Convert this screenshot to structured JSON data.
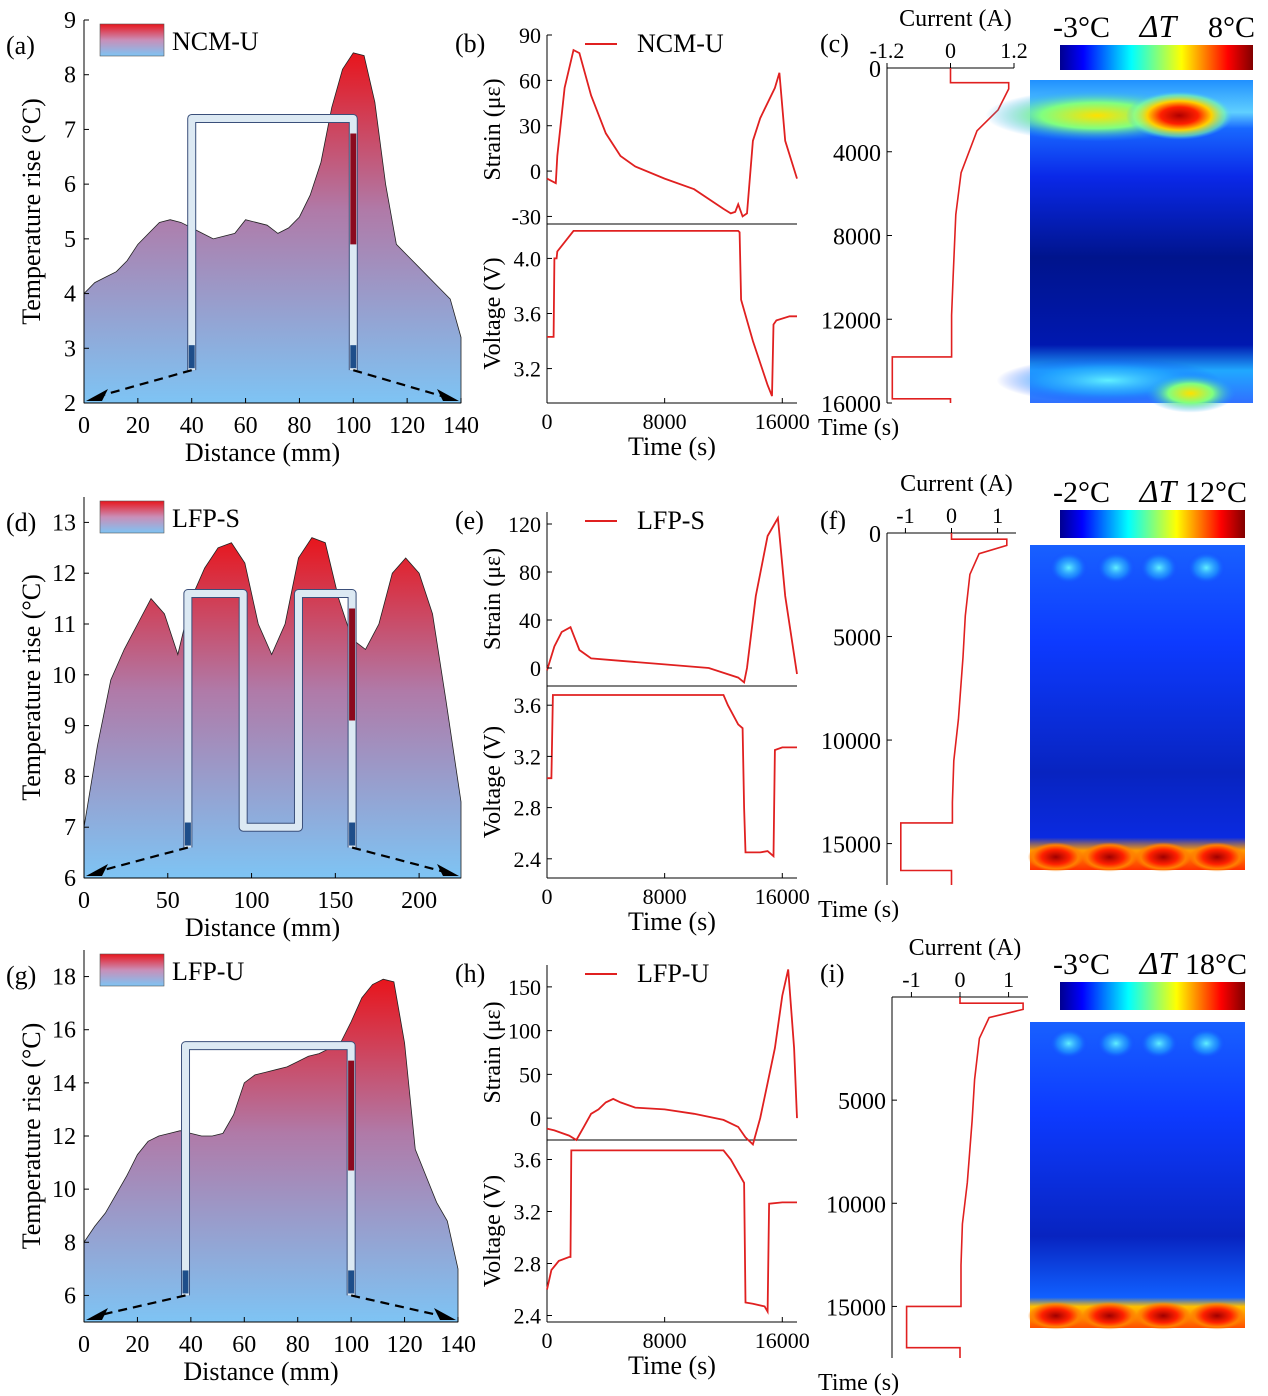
{
  "colors": {
    "red": "#e0191e",
    "blue": "#7ec0f0",
    "line": "#e02020"
  },
  "chart_data": [
    {
      "panel": "a",
      "type": "area",
      "label": "(a)",
      "legend": "NCM-U",
      "xlabel": "Distance (mm)",
      "ylabel": "Temperature rise (°C)",
      "xlim": [
        0,
        140
      ],
      "ylim": [
        2,
        9
      ],
      "xticks": [
        0,
        20,
        40,
        60,
        80,
        100,
        120,
        140
      ],
      "yticks": [
        2,
        3,
        4,
        5,
        6,
        7,
        8,
        9
      ],
      "x": [
        0,
        4,
        8,
        12,
        16,
        20,
        24,
        28,
        32,
        36,
        40,
        44,
        48,
        52,
        56,
        60,
        64,
        68,
        72,
        76,
        80,
        84,
        88,
        92,
        96,
        100,
        104,
        108,
        112,
        116,
        120,
        124,
        128,
        132,
        136,
        140
      ],
      "y": [
        4.0,
        4.2,
        4.3,
        4.4,
        4.6,
        4.9,
        5.1,
        5.3,
        5.35,
        5.3,
        5.2,
        5.1,
        5.0,
        5.05,
        5.1,
        5.35,
        5.3,
        5.25,
        5.1,
        5.2,
        5.4,
        5.8,
        6.4,
        7.4,
        8.1,
        8.4,
        8.35,
        7.5,
        6.0,
        4.9,
        4.7,
        4.5,
        4.3,
        4.1,
        3.9,
        3.2
      ],
      "sensor_path": [
        [
          40,
          2.6
        ],
        [
          40,
          7.2
        ],
        [
          100,
          7.2
        ],
        [
          100,
          2.6
        ]
      ]
    },
    {
      "panel": "b",
      "type": "line",
      "label": "(b)",
      "legend": "NCM-U",
      "xlabel": "Time (s)",
      "xlim": [
        0,
        17000
      ],
      "xticks": [
        0,
        8000,
        16000
      ],
      "top": {
        "ylabel": "Strain (με)",
        "ylim": [
          -35,
          90
        ],
        "yticks": [
          -30,
          0,
          30,
          60,
          90
        ],
        "x": [
          0,
          600,
          700,
          1200,
          1800,
          2200,
          3000,
          4000,
          5000,
          6000,
          8000,
          10000,
          12000,
          12500,
          12800,
          13000,
          13300,
          13600,
          14000,
          14500,
          15500,
          15800,
          16200,
          17000
        ],
        "y": [
          -5,
          -8,
          10,
          55,
          80,
          78,
          50,
          25,
          10,
          3,
          -5,
          -12,
          -25,
          -28,
          -27,
          -22,
          -30,
          -28,
          20,
          35,
          55,
          65,
          20,
          -5
        ]
      },
      "bottom": {
        "ylabel": "Voltage (V)",
        "ylim": [
          2.95,
          4.25
        ],
        "yticks": [
          3.2,
          3.6,
          4.0
        ],
        "x": [
          0,
          450,
          500,
          650,
          700,
          1800,
          13000,
          13100,
          13200,
          14000,
          15000,
          15300,
          15400,
          15600,
          16500,
          17000
        ],
        "y": [
          3.43,
          3.43,
          4.0,
          4.0,
          4.05,
          4.2,
          4.2,
          4.19,
          3.7,
          3.4,
          3.08,
          3.0,
          3.52,
          3.55,
          3.58,
          3.58
        ]
      }
    },
    {
      "panel": "c",
      "type": "heatmap",
      "label": "(c)",
      "current_label": "Current (A)",
      "current_ticks": [
        "-1.2",
        "0",
        "1.2"
      ],
      "xlim": [
        -1.2,
        1.2
      ],
      "time_label": "Time (s)",
      "time_ticks": [
        0,
        4000,
        8000,
        12000,
        16000
      ],
      "tlim": [
        0,
        16000
      ],
      "scale_min": "-3°C",
      "scale_mid": "ΔT",
      "scale_max": "8°C",
      "current_t": [
        0,
        700,
        700,
        1000,
        2000,
        3000,
        5000,
        7000,
        10000,
        11800,
        13800,
        13800,
        15800,
        15800,
        16000
      ],
      "current_a": [
        0,
        0,
        1.1,
        1.1,
        0.9,
        0.5,
        0.2,
        0.1,
        0.05,
        0.02,
        0.02,
        -1.1,
        -1.1,
        0,
        0
      ],
      "hot_bands": "top and bottom"
    },
    {
      "panel": "d",
      "type": "area",
      "label": "(d)",
      "legend": "LFP-S",
      "xlabel": "Distance (mm)",
      "ylabel": "Temperature rise (°C)",
      "xlim": [
        0,
        225
      ],
      "ylim": [
        6,
        13.5
      ],
      "xticks": [
        0,
        50,
        100,
        150,
        200
      ],
      "yticks": [
        6,
        7,
        8,
        9,
        10,
        11,
        12,
        13
      ],
      "x": [
        0,
        8,
        16,
        24,
        32,
        40,
        48,
        56,
        64,
        72,
        80,
        88,
        96,
        104,
        112,
        120,
        128,
        136,
        144,
        152,
        160,
        168,
        176,
        184,
        192,
        200,
        208,
        216,
        225
      ],
      "y": [
        7.0,
        8.6,
        9.9,
        10.5,
        11.0,
        11.5,
        11.2,
        10.4,
        11.5,
        12.1,
        12.5,
        12.6,
        12.2,
        11.0,
        10.4,
        11.0,
        12.3,
        12.7,
        12.6,
        11.5,
        10.7,
        10.5,
        11.0,
        12.0,
        12.3,
        12.0,
        11.2,
        9.5,
        7.5
      ],
      "sensor_path": [
        [
          62,
          6.6
        ],
        [
          62,
          11.6
        ],
        [
          95,
          11.6
        ],
        [
          95,
          7.0
        ],
        [
          128,
          7.0
        ],
        [
          128,
          11.6
        ],
        [
          160,
          11.6
        ],
        [
          160,
          6.6
        ]
      ]
    },
    {
      "panel": "e",
      "type": "line",
      "label": "(e)",
      "legend": "LFP-S",
      "xlabel": "Time (s)",
      "xlim": [
        0,
        17000
      ],
      "xticks": [
        0,
        8000,
        16000
      ],
      "top": {
        "ylabel": "Strain (με)",
        "ylim": [
          -15,
          130
        ],
        "yticks": [
          0,
          40,
          80,
          120
        ],
        "x": [
          0,
          500,
          1000,
          1600,
          2200,
          3000,
          5000,
          8000,
          11000,
          13000,
          13400,
          13600,
          14200,
          15000,
          15700,
          16200,
          17000
        ],
        "y": [
          -2,
          18,
          30,
          34,
          15,
          8,
          6,
          3,
          0,
          -8,
          -12,
          0,
          60,
          110,
          125,
          60,
          -5
        ]
      },
      "bottom": {
        "ylabel": "Voltage (V)",
        "ylim": [
          2.25,
          3.75
        ],
        "yticks": [
          2.4,
          2.8,
          3.2,
          3.6
        ],
        "x": [
          0,
          300,
          400,
          12000,
          12300,
          13000,
          13300,
          13400,
          13500,
          14500,
          15000,
          15400,
          15500,
          16000,
          17000
        ],
        "y": [
          3.03,
          3.03,
          3.68,
          3.68,
          3.6,
          3.45,
          3.42,
          2.8,
          2.45,
          2.45,
          2.46,
          2.42,
          3.25,
          3.27,
          3.27
        ]
      }
    },
    {
      "panel": "f",
      "type": "heatmap",
      "label": "(f)",
      "current_label": "Current (A)",
      "current_ticks": [
        "-1",
        "0",
        "1"
      ],
      "xlim": [
        -1.4,
        1.4
      ],
      "time_label": "Time (s)",
      "time_ticks": [
        0,
        5000,
        10000,
        15000
      ],
      "tlim": [
        0,
        17000
      ],
      "scale_min": "-2°C",
      "scale_mid": "ΔT",
      "scale_max": "12°C",
      "current_t": [
        0,
        300,
        300,
        600,
        1000,
        2000,
        4000,
        6000,
        9000,
        11000,
        13000,
        14000,
        14000,
        16300,
        16300,
        17000
      ],
      "current_a": [
        0,
        0,
        1.2,
        1.2,
        0.6,
        0.4,
        0.3,
        0.25,
        0.15,
        0.05,
        0.02,
        0.02,
        -1.1,
        -1.1,
        0,
        0
      ],
      "hot_bands": "bottom"
    },
    {
      "panel": "g",
      "type": "area",
      "label": "(g)",
      "legend": "LFP-U",
      "xlabel": "Distance (mm)",
      "ylabel": "Temperature rise (°C)",
      "xlim": [
        0,
        140
      ],
      "ylim": [
        5,
        19
      ],
      "xticks": [
        0,
        20,
        40,
        60,
        80,
        100,
        120,
        140
      ],
      "yticks": [
        6,
        8,
        10,
        12,
        14,
        16,
        18
      ],
      "x": [
        0,
        4,
        8,
        12,
        16,
        20,
        24,
        28,
        32,
        36,
        40,
        44,
        48,
        52,
        56,
        60,
        64,
        68,
        72,
        76,
        80,
        84,
        88,
        92,
        96,
        100,
        104,
        108,
        112,
        116,
        120,
        124,
        128,
        132,
        136,
        140
      ],
      "y": [
        8.0,
        8.6,
        9.1,
        9.8,
        10.5,
        11.3,
        11.8,
        12.0,
        12.1,
        12.2,
        12.1,
        12.0,
        12.0,
        12.1,
        12.8,
        14.0,
        14.3,
        14.4,
        14.5,
        14.6,
        14.8,
        15.0,
        15.1,
        15.3,
        15.5,
        16.3,
        17.2,
        17.7,
        17.9,
        17.8,
        15.5,
        11.5,
        10.5,
        9.5,
        8.8,
        7.0
      ],
      "sensor_path": [
        [
          38,
          6.0
        ],
        [
          38,
          15.4
        ],
        [
          100,
          15.4
        ],
        [
          100,
          6.0
        ]
      ]
    },
    {
      "panel": "h",
      "type": "line",
      "label": "(h)",
      "legend": "LFP-U",
      "xlabel": "Time (s)",
      "xlim": [
        0,
        17000
      ],
      "xticks": [
        0,
        8000,
        16000
      ],
      "top": {
        "ylabel": "Strain (με)",
        "ylim": [
          -25,
          175
        ],
        "yticks": [
          0,
          50,
          100,
          150
        ],
        "x": [
          0,
          500,
          1000,
          1500,
          2000,
          2500,
          3000,
          3500,
          4000,
          4500,
          5000,
          6000,
          8000,
          10000,
          12000,
          13000,
          13500,
          14000,
          14500,
          15000,
          15500,
          16000,
          16400,
          16800,
          17000
        ],
        "y": [
          -12,
          -14,
          -17,
          -20,
          -25,
          -10,
          5,
          10,
          18,
          22,
          18,
          12,
          10,
          5,
          -2,
          -10,
          -22,
          -30,
          0,
          40,
          80,
          140,
          170,
          80,
          0
        ]
      },
      "bottom": {
        "ylabel": "Voltage (V)",
        "ylim": [
          2.35,
          3.75
        ],
        "yticks": [
          2.4,
          2.8,
          3.2,
          3.6
        ],
        "x": [
          0,
          300,
          800,
          1500,
          1600,
          1650,
          12000,
          12500,
          13400,
          13500,
          14000,
          14800,
          15000,
          15100,
          16000,
          17000
        ],
        "y": [
          2.6,
          2.75,
          2.82,
          2.85,
          2.85,
          3.67,
          3.67,
          3.6,
          3.42,
          2.5,
          2.49,
          2.47,
          2.43,
          3.26,
          3.27,
          3.27
        ]
      }
    },
    {
      "panel": "i",
      "type": "heatmap",
      "label": "(i)",
      "current_label": "Current (A)",
      "current_ticks": [
        "-1",
        "0",
        "1"
      ],
      "xlim": [
        -1.4,
        1.4
      ],
      "time_label": "Time (s)",
      "time_ticks": [
        5000,
        10000,
        15000
      ],
      "tlim": [
        0,
        17500
      ],
      "scale_min": "-3°C",
      "scale_mid": "ΔT",
      "scale_max": "18°C",
      "current_t": [
        0,
        300,
        300,
        600,
        1000,
        2000,
        4000,
        6000,
        9000,
        11000,
        13000,
        15000,
        15000,
        17000,
        17000,
        17500
      ],
      "current_a": [
        0,
        0,
        1.3,
        1.3,
        0.6,
        0.4,
        0.3,
        0.25,
        0.15,
        0.05,
        0.02,
        0.02,
        -1.1,
        -1.1,
        0,
        0
      ],
      "hot_bands": "bottom"
    }
  ]
}
